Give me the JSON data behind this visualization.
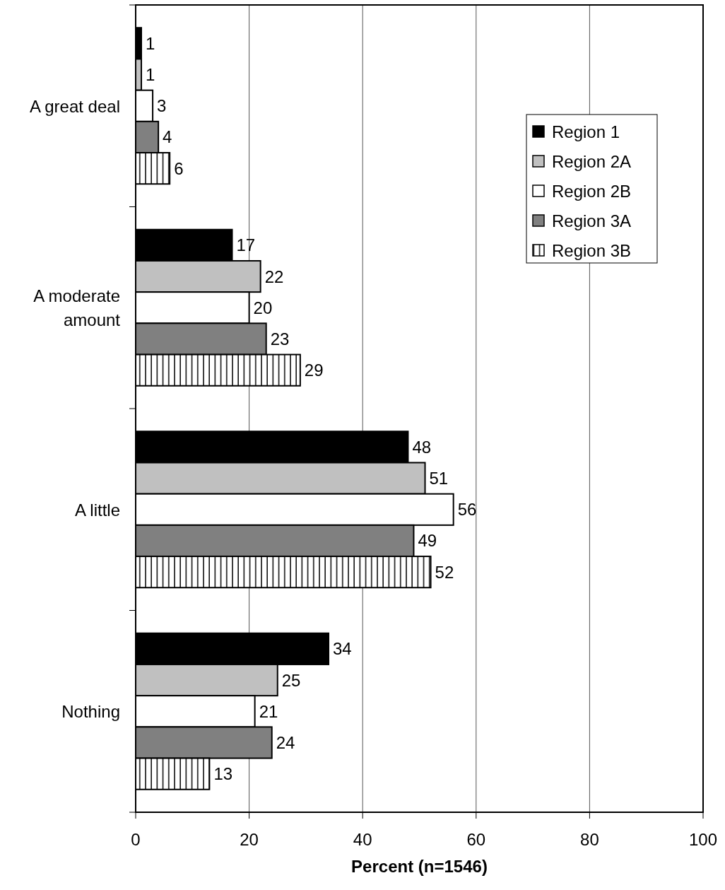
{
  "chart_data": {
    "type": "bar",
    "orientation": "horizontal",
    "xlabel": "Percent (n=1546)",
    "categories": [
      "A great deal",
      "A moderate amount",
      "A little",
      "Nothing"
    ],
    "series": [
      {
        "name": "Region 1",
        "color": "#000000",
        "values": [
          1,
          17,
          48,
          34
        ]
      },
      {
        "name": "Region 2A",
        "color": "#c0c0c0",
        "values": [
          1,
          22,
          51,
          25
        ]
      },
      {
        "name": "Region 2B",
        "color": "#ffffff",
        "values": [
          3,
          20,
          56,
          21
        ]
      },
      {
        "name": "Region 3A",
        "color": "#808080",
        "values": [
          4,
          23,
          49,
          24
        ]
      },
      {
        "name": "Region 3B",
        "color": "#ffffff",
        "values": [
          6,
          29,
          52,
          13
        ]
      }
    ],
    "xlim": [
      0,
      100
    ],
    "xticks": [
      0,
      20,
      40,
      60,
      80,
      100
    ],
    "grid": "x",
    "legend": "top right",
    "data_labels": true
  }
}
